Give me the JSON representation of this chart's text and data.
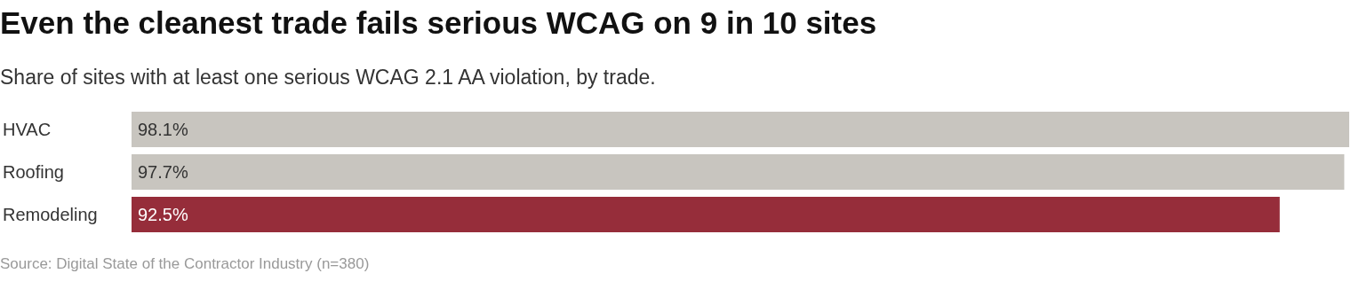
{
  "chart_data": {
    "type": "bar",
    "orientation": "horizontal",
    "title": "Even the cleanest trade fails serious WCAG on 9 in 10 sites",
    "subtitle": "Share of sites with at least one serious WCAG 2.1 AA violation, by trade.",
    "categories": [
      "HVAC",
      "Roofing",
      "Remodeling"
    ],
    "values": [
      98.1,
      97.7,
      92.5
    ],
    "value_labels": [
      "98.1%",
      "97.7%",
      "92.5%"
    ],
    "colors": [
      "#c8c5bf",
      "#c8c5bf",
      "#962d3a"
    ],
    "annotations": [
      "Source: Digital State of the Contractor Industry (n=380)"
    ]
  }
}
